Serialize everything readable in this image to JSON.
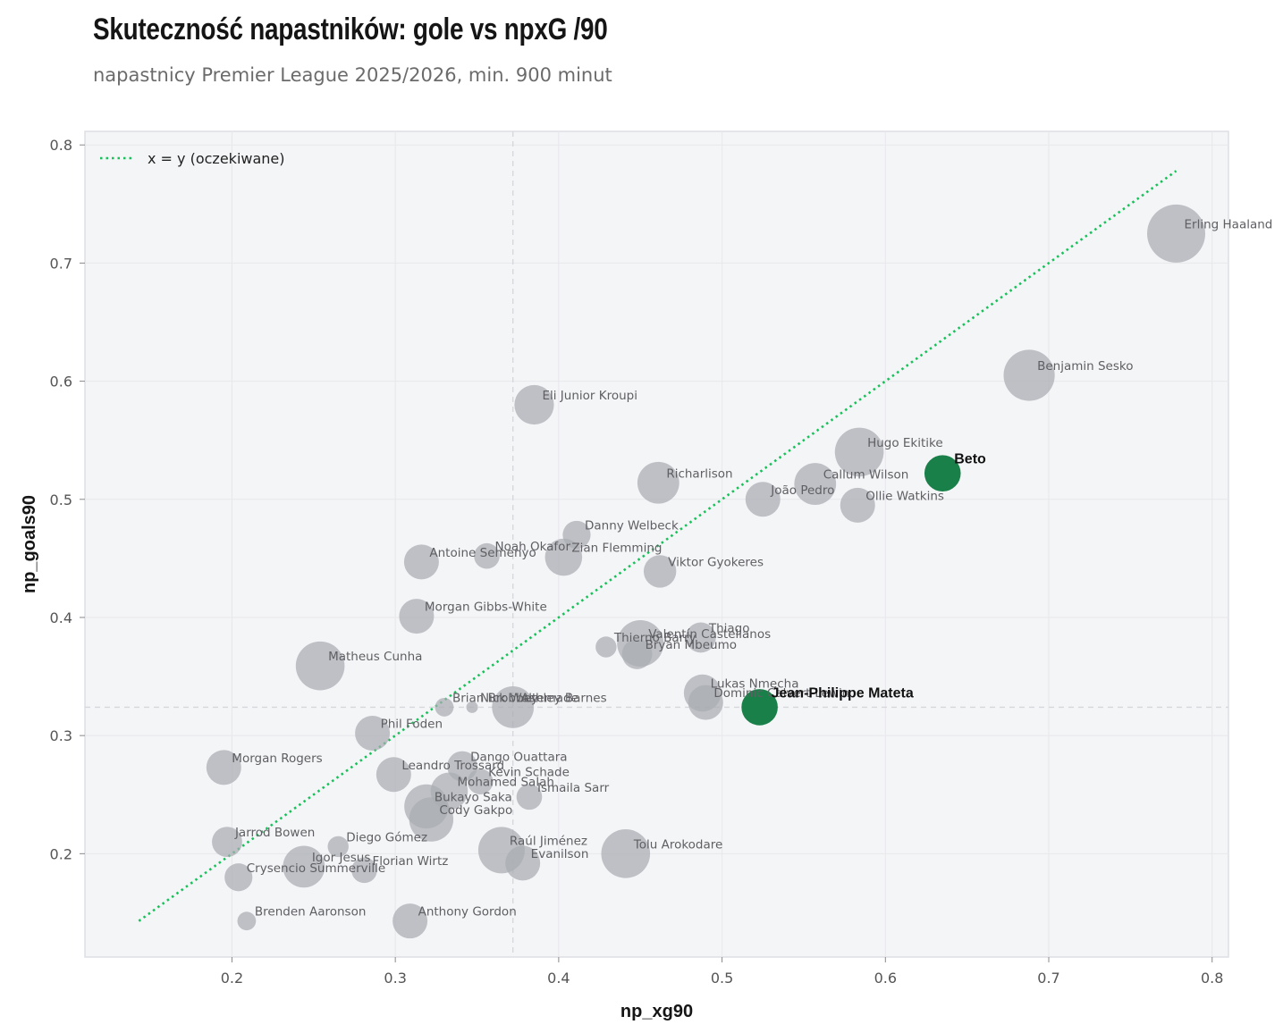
{
  "title": "Skuteczność napastników: gole vs npxG /90",
  "subtitle": "napastnicy Premier League 2025/2026, min. 900 minut",
  "colors": {
    "panel": "#f4f5f7",
    "point": "#a9acb1",
    "highlight": "#1a8049",
    "diagonal": "#17c159"
  },
  "chart_data": {
    "type": "scatter",
    "xlabel": "np_xg90",
    "ylabel": "np_goals90",
    "xlim": [
      0.11,
      0.81
    ],
    "ylim": [
      0.1125,
      0.8115
    ],
    "xticks": [
      0.2,
      0.3,
      0.4,
      0.5,
      0.6,
      0.7,
      0.8
    ],
    "yticks": [
      0.2,
      0.3,
      0.4,
      0.5,
      0.6,
      0.7,
      0.8
    ],
    "grid": true,
    "reference_lines": {
      "x": 0.372,
      "y": 0.324
    },
    "diagonal": {
      "label": "x = y (oczekiwane)",
      "from": 0.143,
      "to": 0.778,
      "legend": "top-left"
    },
    "points": [
      {
        "name": "Erling Haaland",
        "x": 0.778,
        "y": 0.725,
        "r": 25
      },
      {
        "name": "Benjamin Sesko",
        "x": 0.688,
        "y": 0.605,
        "r": 22
      },
      {
        "name": "Eli Junior Kroupi",
        "x": 0.385,
        "y": 0.58,
        "r": 17
      },
      {
        "name": "Hugo Ekitike",
        "x": 0.584,
        "y": 0.54,
        "r": 21
      },
      {
        "name": "Beto",
        "x": 0.635,
        "y": 0.522,
        "r": 14,
        "highlight": true
      },
      {
        "name": "Richarlison",
        "x": 0.461,
        "y": 0.514,
        "r": 18
      },
      {
        "name": "Callum Wilson",
        "x": 0.557,
        "y": 0.513,
        "r": 18
      },
      {
        "name": "João Pedro",
        "x": 0.525,
        "y": 0.5,
        "r": 15
      },
      {
        "name": "Ollie Watkins",
        "x": 0.583,
        "y": 0.495,
        "r": 15
      },
      {
        "name": "Danny Welbeck",
        "x": 0.411,
        "y": 0.47,
        "r": 12
      },
      {
        "name": "Noah Okafor",
        "x": 0.356,
        "y": 0.452,
        "r": 11
      },
      {
        "name": "Zian Flemming",
        "x": 0.403,
        "y": 0.451,
        "r": 16
      },
      {
        "name": "Antoine Semenyo",
        "x": 0.316,
        "y": 0.447,
        "r": 15
      },
      {
        "name": "Viktor Gyokeres",
        "x": 0.462,
        "y": 0.439,
        "r": 14
      },
      {
        "name": "Morgan Gibbs-White",
        "x": 0.313,
        "y": 0.401,
        "r": 15
      },
      {
        "name": "Thiago",
        "x": 0.487,
        "y": 0.383,
        "r": 13
      },
      {
        "name": "Valentín Castellanos",
        "x": 0.45,
        "y": 0.378,
        "r": 20
      },
      {
        "name": "Thierno Barry",
        "x": 0.429,
        "y": 0.375,
        "r": 9
      },
      {
        "name": "Bryan Mbeumo",
        "x": 0.448,
        "y": 0.369,
        "r": 13
      },
      {
        "name": "Matheus Cunha",
        "x": 0.254,
        "y": 0.359,
        "r": 21
      },
      {
        "name": "Lukas Nmecha",
        "x": 0.488,
        "y": 0.336,
        "r": 16
      },
      {
        "name": "Dominic Calvert-Lewin",
        "x": 0.49,
        "y": 0.328,
        "r": 15
      },
      {
        "name": "Jean-Philippe Mateta",
        "x": 0.523,
        "y": 0.324,
        "r": 14,
        "highlight": true
      },
      {
        "name": "Ashley Barnes",
        "x": 0.372,
        "y": 0.324,
        "r": 18
      },
      {
        "name": "Brian Brobbey",
        "x": 0.33,
        "y": 0.324,
        "r": 8
      },
      {
        "name": "Nick Woltemade",
        "x": 0.347,
        "y": 0.324,
        "r": 5
      },
      {
        "name": "Phil Foden",
        "x": 0.286,
        "y": 0.302,
        "r": 15
      },
      {
        "name": "Morgan Rogers",
        "x": 0.195,
        "y": 0.273,
        "r": 15
      },
      {
        "name": "Dango Ouattara",
        "x": 0.341,
        "y": 0.274,
        "r": 13
      },
      {
        "name": "Leandro Trossard",
        "x": 0.299,
        "y": 0.267,
        "r": 15
      },
      {
        "name": "Kevin Schade",
        "x": 0.352,
        "y": 0.261,
        "r": 11
      },
      {
        "name": "Mohamed Salah",
        "x": 0.333,
        "y": 0.253,
        "r": 16
      },
      {
        "name": "Ismaila Sarr",
        "x": 0.382,
        "y": 0.248,
        "r": 11
      },
      {
        "name": "Bukayo Saka",
        "x": 0.319,
        "y": 0.24,
        "r": 19
      },
      {
        "name": "Cody Gakpo",
        "x": 0.322,
        "y": 0.229,
        "r": 19
      },
      {
        "name": "Jarrod Bowen",
        "x": 0.197,
        "y": 0.21,
        "r": 13
      },
      {
        "name": "Diego Gómez",
        "x": 0.265,
        "y": 0.206,
        "r": 9
      },
      {
        "name": "Raúl Jiménez",
        "x": 0.365,
        "y": 0.203,
        "r": 20
      },
      {
        "name": "Tolu Arokodare",
        "x": 0.441,
        "y": 0.2,
        "r": 21
      },
      {
        "name": "Evanilson",
        "x": 0.378,
        "y": 0.192,
        "r": 15
      },
      {
        "name": "Igor Jesus",
        "x": 0.244,
        "y": 0.189,
        "r": 18
      },
      {
        "name": "Florian Wirtz",
        "x": 0.281,
        "y": 0.186,
        "r": 11
      },
      {
        "name": "Crysencio Summerville",
        "x": 0.204,
        "y": 0.18,
        "r": 12
      },
      {
        "name": "Brenden Aaronson",
        "x": 0.209,
        "y": 0.143,
        "r": 8
      },
      {
        "name": "Anthony Gordon",
        "x": 0.309,
        "y": 0.143,
        "r": 15
      }
    ]
  }
}
